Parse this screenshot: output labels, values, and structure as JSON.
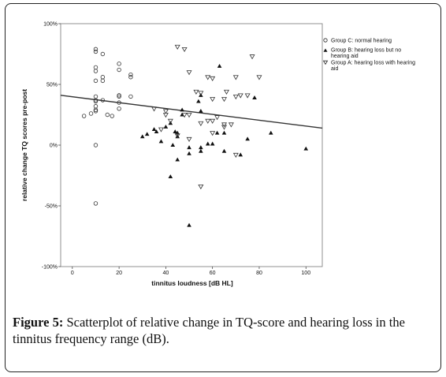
{
  "caption": {
    "label": "Figure 5:",
    "text": " Scatterplot of relative change in TQ-score and hearing loss in the tinnitus frequency range (dB)."
  },
  "chart_data": {
    "type": "scatter",
    "xlabel": "tinnitus loudness [dB HL]",
    "ylabel": "relative change TQ scores pre-post",
    "xlim": [
      -5,
      107
    ],
    "ylim": [
      -100,
      100
    ],
    "x_ticks": [
      0,
      20,
      40,
      60,
      80,
      100
    ],
    "y_ticks": [
      100,
      50,
      0,
      -50,
      -100
    ],
    "y_tick_labels": [
      "100%",
      "50%",
      "0%",
      "-50%",
      "-100%"
    ],
    "grid": false,
    "legend_position": "top-right",
    "fit_line": {
      "x": [
        -5,
        107
      ],
      "y": [
        41,
        14
      ]
    },
    "series": [
      {
        "name": "Group C: normal hearing",
        "marker": "circle-open",
        "x": [
          10,
          10,
          13,
          10,
          10,
          13,
          13,
          10,
          10,
          10,
          10,
          13,
          10,
          10,
          10,
          8,
          5,
          15,
          17,
          20,
          20,
          20,
          20,
          20,
          20,
          25,
          25,
          25,
          10,
          10
        ],
        "y": [
          79,
          77,
          75,
          64,
          61,
          56,
          53,
          53,
          40,
          37,
          36,
          37,
          32,
          29,
          28,
          26,
          24,
          25,
          24,
          67,
          62,
          41,
          40,
          35,
          30,
          58,
          56,
          40,
          0,
          -48
        ]
      },
      {
        "name": "Group B: hearing loss but no hearing aid",
        "marker": "triangle-filled",
        "x": [
          63,
          55,
          54,
          47,
          47,
          42,
          35,
          36,
          32,
          30,
          40,
          44,
          45,
          45,
          38,
          43,
          50,
          50,
          55,
          55,
          58,
          60,
          62,
          65,
          65,
          72,
          75,
          78,
          85,
          100,
          42,
          45,
          50,
          55
        ],
        "y": [
          65,
          41,
          36,
          29,
          25,
          18,
          13,
          11,
          9,
          7,
          15,
          11,
          10,
          7,
          3,
          0,
          -2,
          -7,
          -2,
          -5,
          1,
          1,
          10,
          10,
          -5,
          -8,
          5,
          39,
          10,
          -3,
          -26,
          -12,
          -66,
          28
        ]
      },
      {
        "name": "Group A: hearing loss with hearing aid",
        "marker": "triangle-open",
        "x": [
          45,
          48,
          77,
          50,
          58,
          60,
          70,
          75,
          80,
          53,
          55,
          60,
          65,
          66,
          70,
          72,
          35,
          40,
          40,
          42,
          48,
          50,
          55,
          58,
          60,
          62,
          65,
          68,
          60,
          65,
          70,
          55,
          45,
          38,
          50
        ],
        "y": [
          81,
          79,
          73,
          60,
          56,
          55,
          56,
          41,
          56,
          44,
          43,
          38,
          38,
          44,
          40,
          41,
          30,
          28,
          25,
          20,
          25,
          25,
          18,
          20,
          20,
          23,
          17,
          17,
          10,
          15,
          -8,
          -34,
          8,
          13,
          5
        ]
      }
    ]
  }
}
